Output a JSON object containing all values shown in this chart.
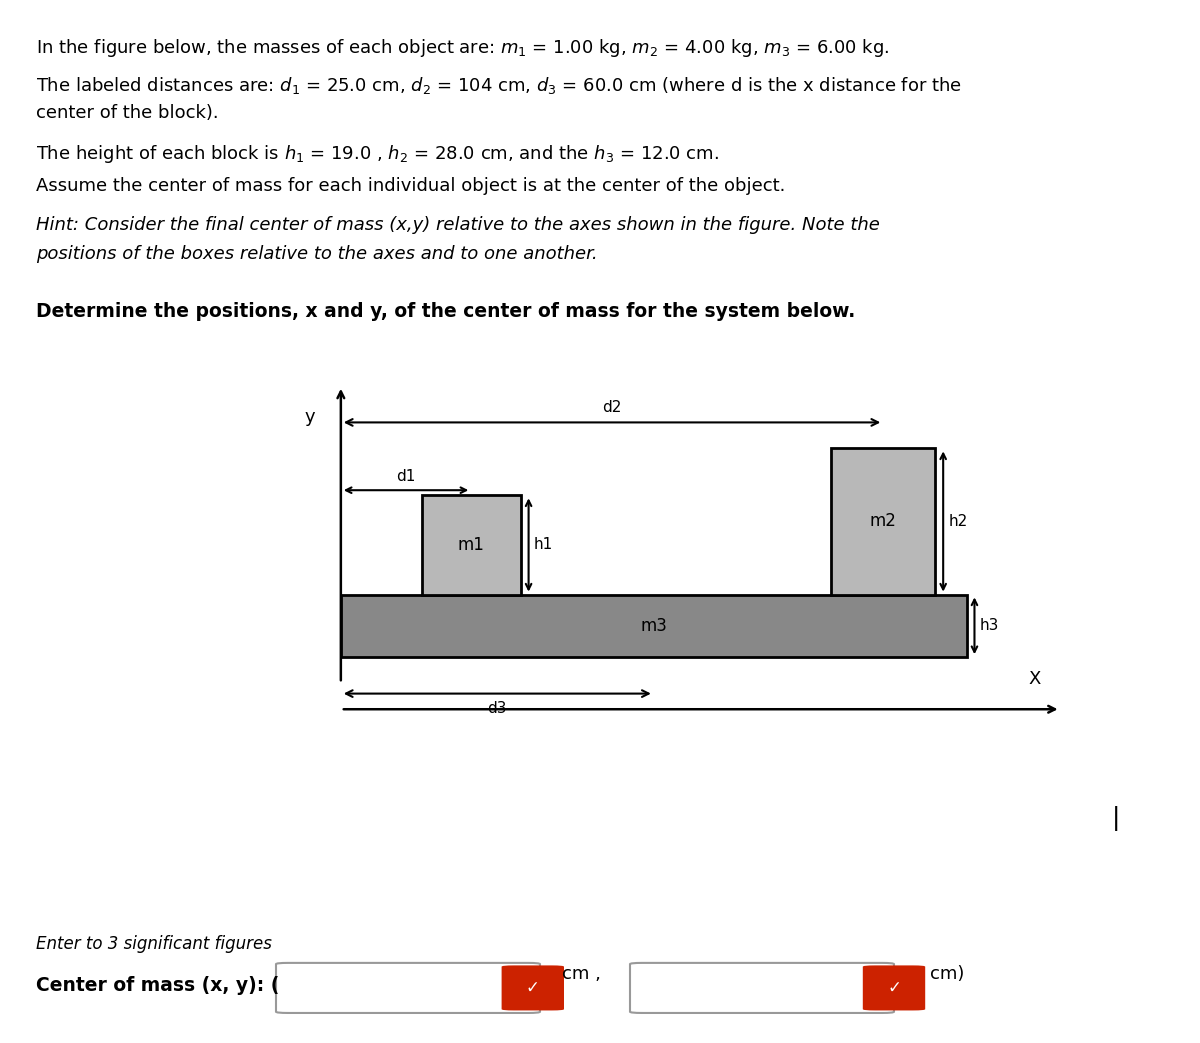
{
  "background": "#ffffff",
  "text_color": "#000000",
  "fig_width": 12.0,
  "fig_height": 10.43,
  "block_gray_dark": "#888888",
  "block_gray_light": "#b8b8b8",
  "block_edge": "#000000",
  "line1": "In the figure below, the masses of each object are: $\\mathit{m}_1$ = 1.00 kg, $\\mathit{m}_2$ = 4.00 kg, $\\mathit{m}_3$ = 6.00 kg.",
  "line2a": "The labeled distances are: $\\mathit{d}_1$ = 25.0 cm, $\\mathit{d}_2$ = 104 cm, $\\mathit{d}_3$ = 60.0 cm (where d is the x distance for the",
  "line2b": "center of the block).",
  "line3": "The height of each block is $\\mathit{h}_1$ = 19.0 , $\\mathit{h}_2$ = 28.0 cm, and the $\\mathit{h}_3$ = 12.0 cm.",
  "line4": "Assume the center of mass for each individual object is at the center of the object.",
  "hint1": "Hint: Consider the final center of mass (x,y) relative to the axes shown in the figure. Note the",
  "hint2": "positions of the boxes relative to the axes and to one another.",
  "question": "Determine the positions, x and y, of the center of mass for the system below.",
  "enter_text": "Enter to 3 significant figures",
  "cm_label": "Center of mass (x, y): (",
  "text_fontsize": 13,
  "hint_fontsize": 13,
  "question_fontsize": 13.5,
  "check_color": "#cc2200"
}
